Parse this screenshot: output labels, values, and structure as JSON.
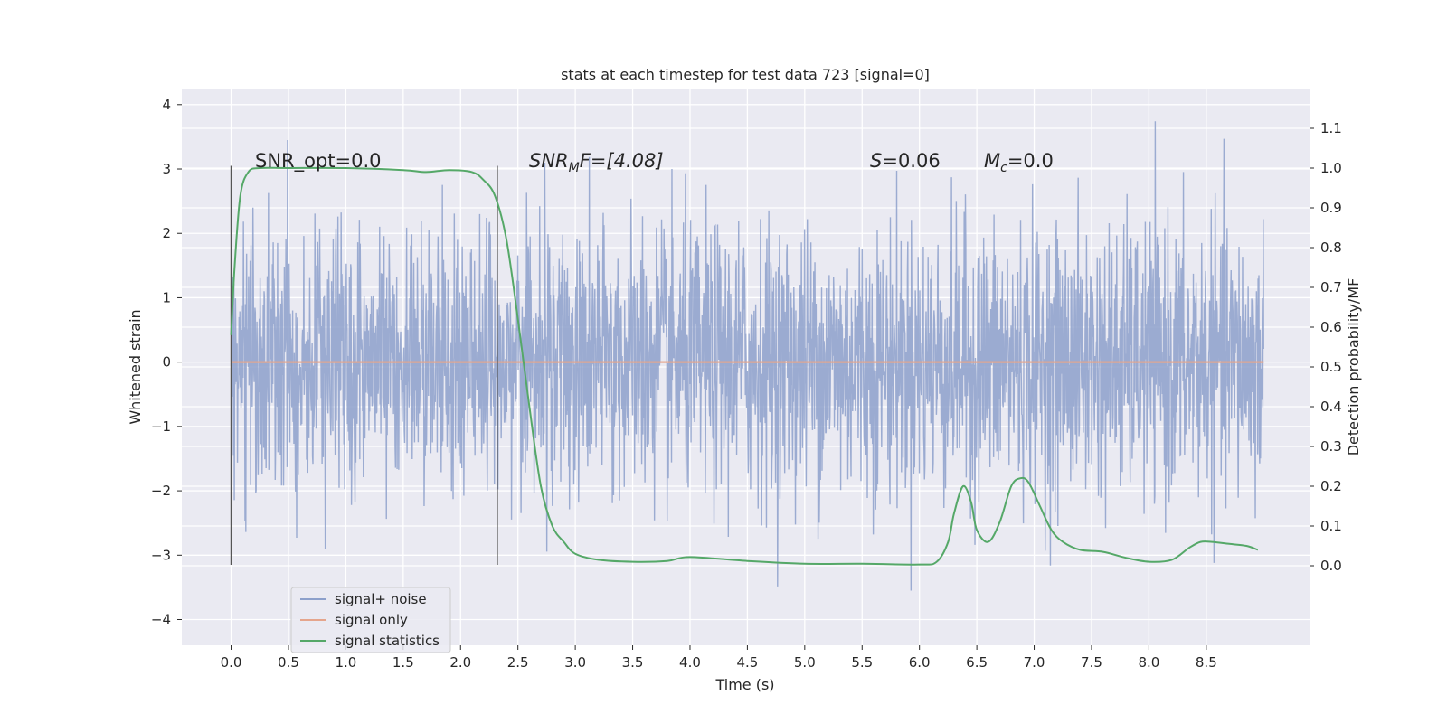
{
  "chart_data": {
    "type": "line",
    "title": "stats at each timestep for test data 723 [signal=0]",
    "xlabel": "Time (s)",
    "ylabel_left": "Whitened strain",
    "ylabel_right": "Detection probability/MF",
    "xlim": [
      -0.43,
      9.4
    ],
    "ylim_left": [
      -4.4,
      4.25
    ],
    "ylim_right": [
      -0.2,
      1.2
    ],
    "xticks": [
      "0.0",
      "0.5",
      "1.0",
      "1.5",
      "2.0",
      "2.5",
      "3.0",
      "3.5",
      "4.0",
      "4.5",
      "5.0",
      "5.5",
      "6.0",
      "6.5",
      "7.0",
      "7.5",
      "8.0",
      "8.5"
    ],
    "yticks_left": [
      "4",
      "3",
      "2",
      "1",
      "0",
      "−1",
      "−2",
      "−3",
      "−4"
    ],
    "yticks_right": [
      "1.1",
      "1.0",
      "0.9",
      "0.8",
      "0.7",
      "0.6",
      "0.5",
      "0.4",
      "0.3",
      "0.2",
      "0.1",
      "0.0"
    ],
    "grid": true,
    "legend_position": "lower-left",
    "vlines_x": [
      0.0,
      2.32
    ],
    "annotations": {
      "snr_opt": "SNR_opt=0.0",
      "snr_mf_base": "SNR",
      "snr_mf_sub": "M",
      "snr_mf_tail": "F=[4.08]",
      "s_base": "S",
      "s_value": "=0.06",
      "mc_base": "M",
      "mc_sub": "c",
      "mc_value": "=0.0"
    },
    "series": [
      {
        "name": "signal+ noise",
        "color": "#8da0cb",
        "axis": "left",
        "x_range": [
          0.0,
          9.0
        ],
        "y_range_approx": [
          -4.0,
          3.9
        ],
        "noise_std": 1.0
      },
      {
        "name": "signal only",
        "color": "#e5a58c",
        "axis": "left",
        "x": [
          0.0,
          9.0
        ],
        "y": [
          0.0,
          0.0
        ]
      },
      {
        "name": "signal statistics",
        "color": "#55a868",
        "axis": "right",
        "x": [
          0.0,
          0.03,
          0.08,
          0.15,
          0.25,
          0.5,
          1.0,
          1.5,
          1.7,
          1.9,
          2.1,
          2.2,
          2.3,
          2.4,
          2.5,
          2.6,
          2.7,
          2.8,
          2.9,
          3.0,
          3.2,
          3.5,
          3.8,
          4.0,
          4.5,
          5.0,
          5.5,
          6.0,
          6.15,
          6.25,
          6.3,
          6.38,
          6.45,
          6.5,
          6.6,
          6.7,
          6.8,
          6.88,
          6.95,
          7.05,
          7.15,
          7.25,
          7.4,
          7.6,
          7.8,
          8.0,
          8.2,
          8.35,
          8.45,
          8.55,
          8.7,
          8.85,
          8.95
        ],
        "y": [
          0.58,
          0.75,
          0.93,
          0.99,
          1.0,
          1.0,
          1.0,
          0.995,
          0.99,
          0.995,
          0.99,
          0.97,
          0.93,
          0.82,
          0.62,
          0.4,
          0.2,
          0.1,
          0.06,
          0.03,
          0.015,
          0.01,
          0.012,
          0.022,
          0.012,
          0.005,
          0.005,
          0.003,
          0.01,
          0.06,
          0.13,
          0.2,
          0.16,
          0.09,
          0.06,
          0.11,
          0.2,
          0.22,
          0.21,
          0.15,
          0.09,
          0.06,
          0.04,
          0.035,
          0.02,
          0.01,
          0.015,
          0.045,
          0.06,
          0.06,
          0.055,
          0.05,
          0.04
        ]
      }
    ]
  }
}
